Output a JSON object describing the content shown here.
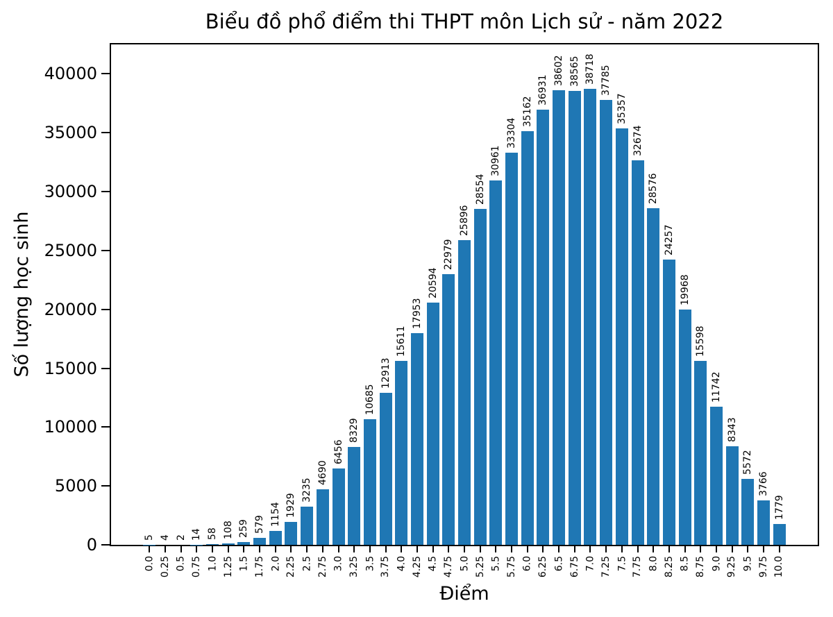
{
  "chart_data": {
    "type": "bar",
    "title": "Biểu đồ phổ điểm thi THPT môn Lịch sử - năm 2022",
    "xlabel": "Điểm",
    "ylabel": "Số lượng học sinh",
    "categories": [
      "0.0",
      "0.25",
      "0.5",
      "0.75",
      "1.0",
      "1.25",
      "1.5",
      "1.75",
      "2.0",
      "2.25",
      "2.5",
      "2.75",
      "3.0",
      "3.25",
      "3.5",
      "3.75",
      "4.0",
      "4.25",
      "4.5",
      "4.75",
      "5.0",
      "5.25",
      "5.5",
      "5.75",
      "6.0",
      "6.25",
      "6.5",
      "6.75",
      "7.0",
      "7.25",
      "7.5",
      "7.75",
      "8.0",
      "8.25",
      "8.5",
      "8.75",
      "9.0",
      "9.25",
      "9.5",
      "9.75",
      "10.0"
    ],
    "values": [
      5,
      4,
      2,
      14,
      58,
      108,
      259,
      579,
      1154,
      1929,
      3235,
      4690,
      6456,
      8329,
      10685,
      12913,
      15611,
      17953,
      20594,
      22979,
      25896,
      28554,
      30961,
      33304,
      35162,
      36931,
      38602,
      38565,
      38718,
      37785,
      35357,
      32674,
      28576,
      24257,
      19968,
      15598,
      11742,
      8343,
      5572,
      3766,
      1779
    ],
    "yticks": [
      0,
      5000,
      10000,
      15000,
      20000,
      25000,
      30000,
      35000,
      40000
    ],
    "ylim": [
      0,
      42500
    ],
    "bar_color": "#1f77b4",
    "grid": false,
    "legend": "none",
    "bar_value_labels": true
  }
}
